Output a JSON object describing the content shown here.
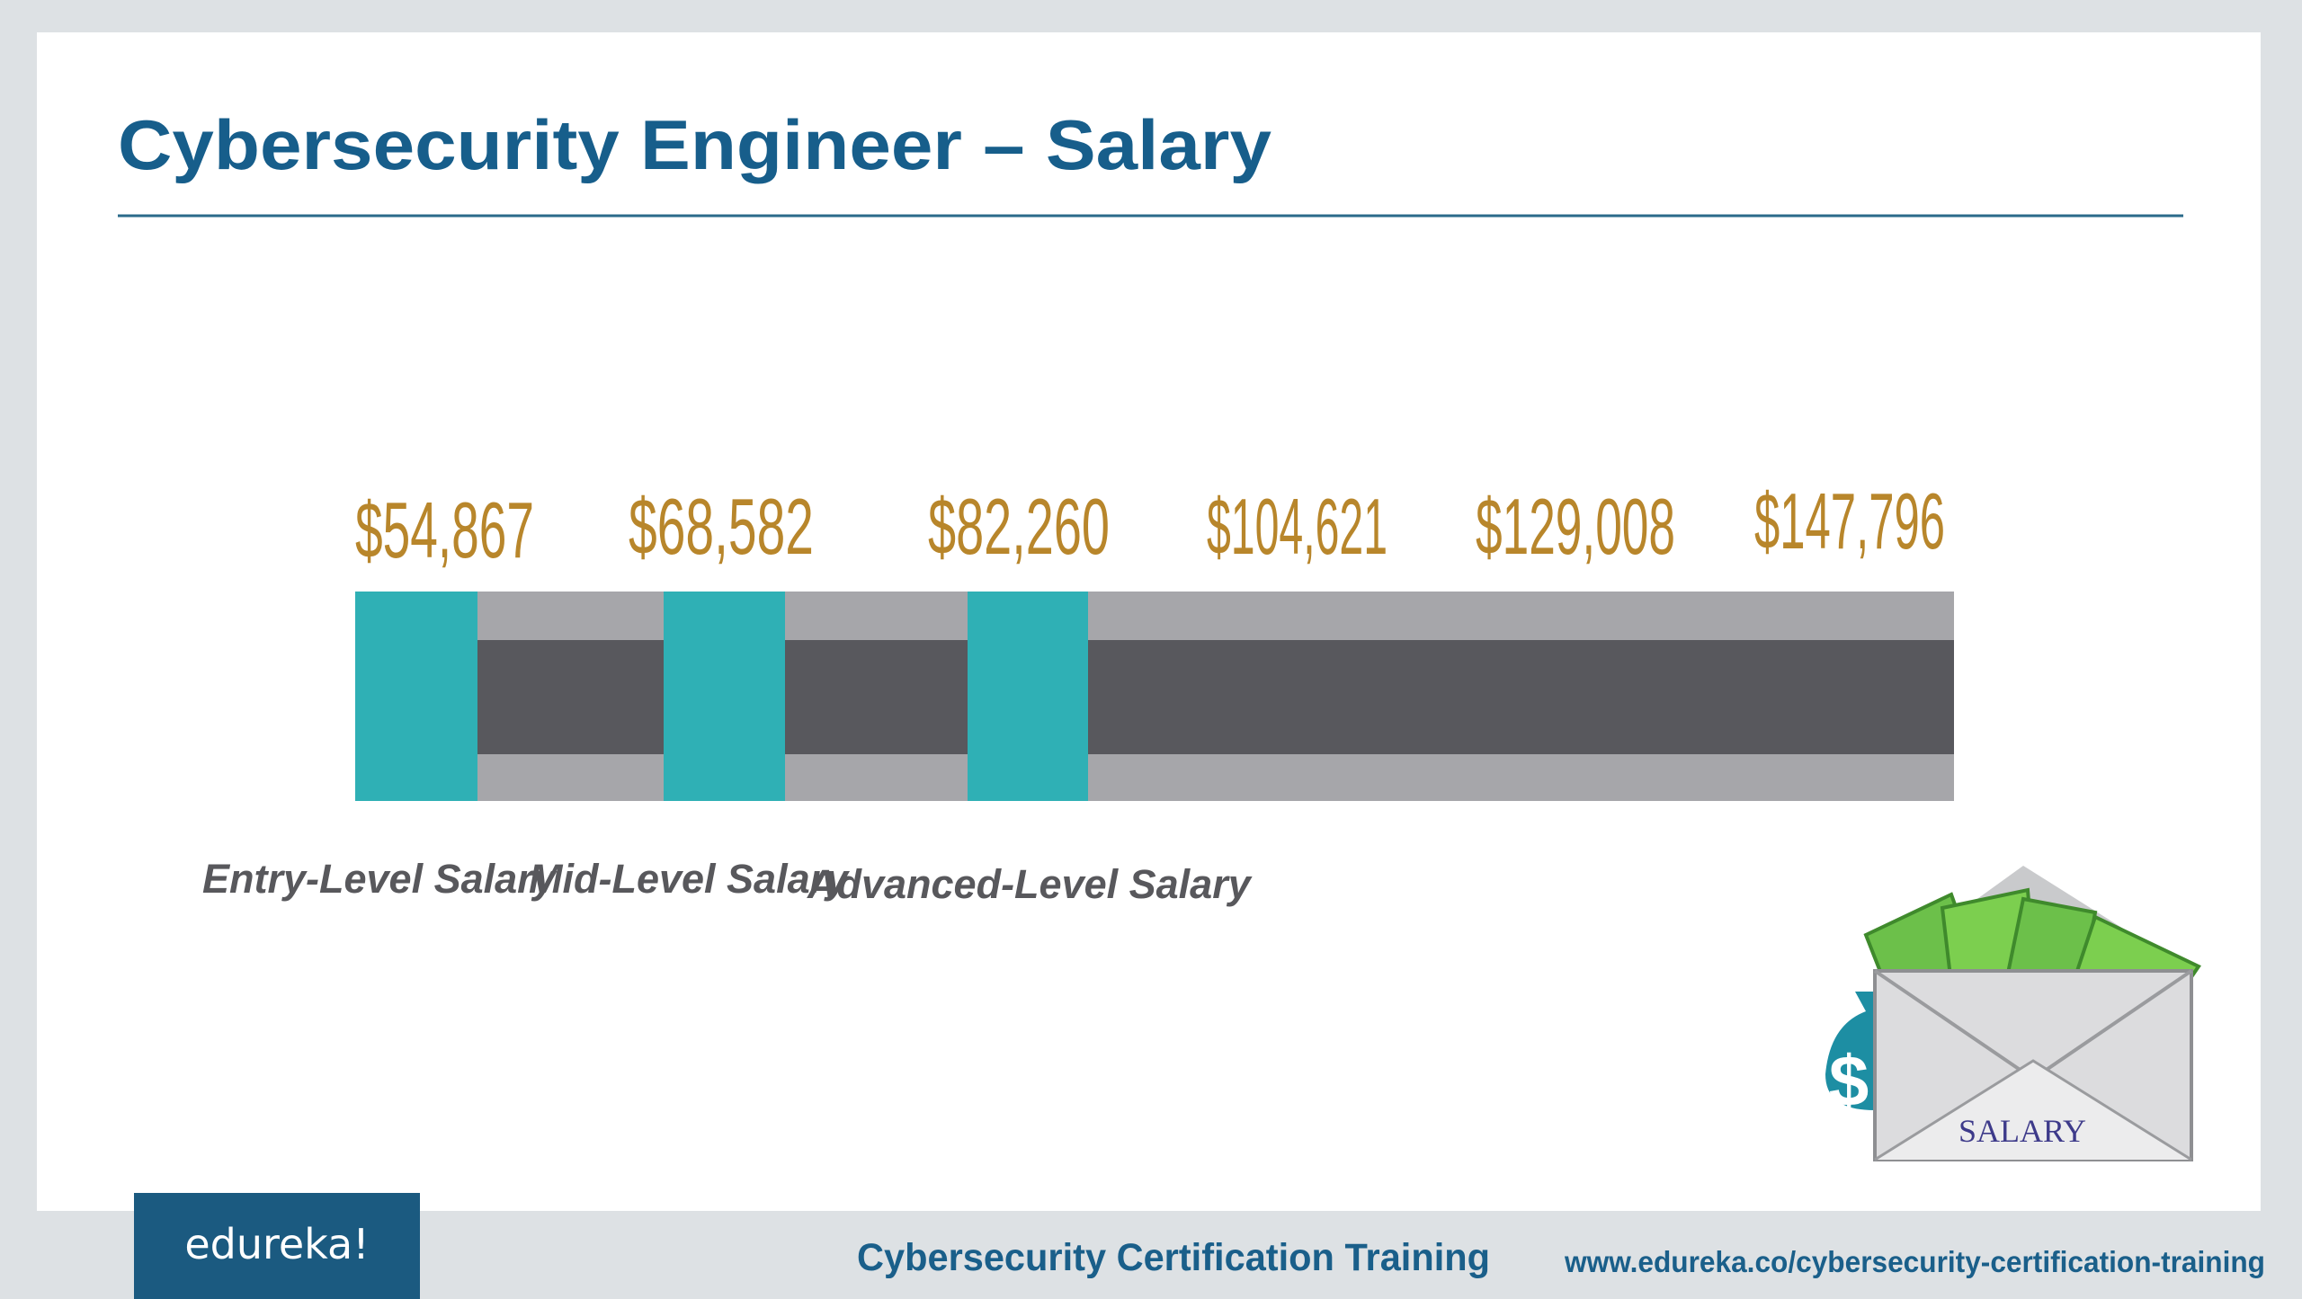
{
  "header": {
    "title": "Cybersecurity Engineer – Salary"
  },
  "salaries": [
    "$54,867",
    "$68,582",
    "$82,260",
    "$104,621",
    "$129,008",
    "$147,796"
  ],
  "levels": [
    "Entry-Level Salary",
    "Mid-Level Salary",
    "Advanced-Level Salary"
  ],
  "illustration": {
    "symbol": "$",
    "label": "SALARY"
  },
  "footer": {
    "logo": "edureka!",
    "course": "Cybersecurity Certification Training",
    "url": "www.edureka.co/cybersecurity-certification-training"
  }
}
